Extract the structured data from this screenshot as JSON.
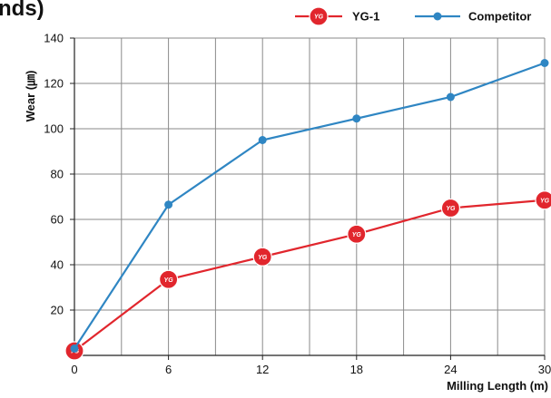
{
  "chart_data": {
    "type": "line",
    "title": "nds)",
    "xlabel": "Milling Length (m)",
    "ylabel": "Wear (㎛)",
    "x": [
      0,
      6,
      12,
      18,
      24,
      30
    ],
    "xlim": [
      0,
      30
    ],
    "ylim": [
      0,
      140
    ],
    "xticks": [
      0,
      6,
      12,
      18,
      24,
      30
    ],
    "yticks": [
      20,
      40,
      60,
      80,
      100,
      120,
      140
    ],
    "xtick_labels": [
      "0",
      "6",
      "12",
      "18",
      "24",
      "30"
    ],
    "ytick_labels": [
      "20",
      "40",
      "60",
      "80",
      "100",
      "120",
      "140"
    ],
    "grid": true,
    "legend_position": "top-right",
    "series": [
      {
        "name": "YG-1",
        "color": "#e1262d",
        "marker": "yg-logo-badge",
        "values": [
          2,
          33.5,
          43.5,
          53.5,
          65,
          68.5
        ]
      },
      {
        "name": "Competitor",
        "color": "#2f86c3",
        "marker": "circle",
        "values": [
          3,
          66.5,
          95,
          104.5,
          114,
          129
        ]
      }
    ],
    "marker_badge_text": "YG"
  }
}
